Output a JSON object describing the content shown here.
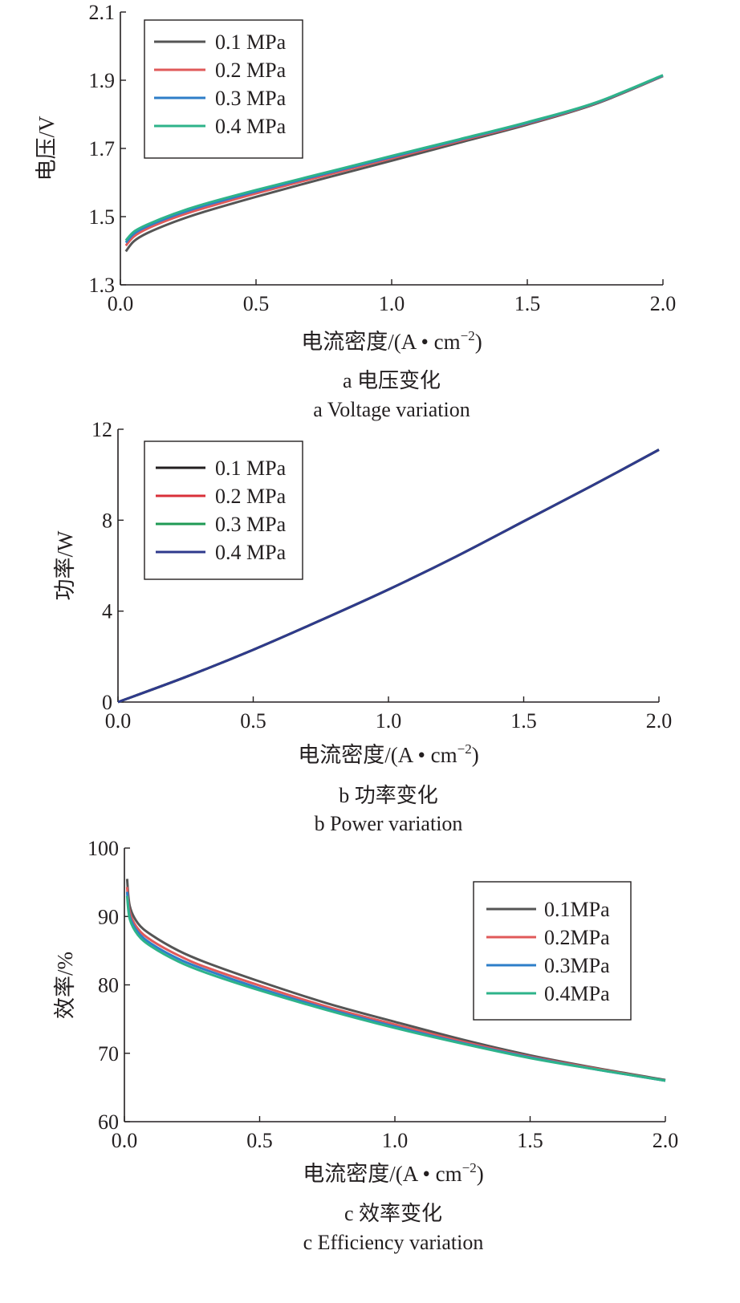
{
  "figures": [
    {
      "caption_cn": "a  电压变化",
      "caption_en": "a  Voltage variation"
    },
    {
      "caption_cn": "b  功率变化",
      "caption_en": "b  Power variation"
    },
    {
      "caption_cn": "c  效率变化",
      "caption_en": "c  Efficiency variation"
    }
  ],
  "chart_data": [
    {
      "type": "line",
      "xlabel": "电流密度/(A • cm⁻²)",
      "xlabel_main": "电流密度/(A • cm",
      "xlabel_sup": "−2",
      "xlabel_tail": ")",
      "ylabel": "电压/V",
      "xlim": [
        0,
        2.0
      ],
      "ylim": [
        1.3,
        2.1
      ],
      "xticks": [
        "0.0",
        "0.5",
        "1.0",
        "1.5",
        "2.0"
      ],
      "yticks": [
        "1.3",
        "1.5",
        "1.7",
        "1.9",
        "2.1"
      ],
      "legend_position": "top-left",
      "x": [
        0.02,
        0.05,
        0.1,
        0.2,
        0.3,
        0.5,
        0.75,
        1.0,
        1.25,
        1.5,
        1.75,
        2.0
      ],
      "series": [
        {
          "name": "0.1 MPa",
          "color": "#555555",
          "values": [
            1.398,
            1.428,
            1.452,
            1.485,
            1.512,
            1.558,
            1.612,
            1.664,
            1.717,
            1.77,
            1.83,
            1.912
          ]
        },
        {
          "name": "0.2 MPa",
          "color": "#e05a5a",
          "values": [
            1.415,
            1.442,
            1.465,
            1.497,
            1.523,
            1.568,
            1.62,
            1.671,
            1.722,
            1.773,
            1.832,
            1.913
          ]
        },
        {
          "name": "0.3 MPa",
          "color": "#2e7ec8",
          "values": [
            1.424,
            1.45,
            1.472,
            1.504,
            1.53,
            1.574,
            1.625,
            1.675,
            1.725,
            1.775,
            1.833,
            1.914
          ]
        },
        {
          "name": "0.4 MPa",
          "color": "#2eb38a",
          "values": [
            1.43,
            1.456,
            1.477,
            1.509,
            1.535,
            1.578,
            1.628,
            1.678,
            1.727,
            1.777,
            1.834,
            1.915
          ]
        }
      ]
    },
    {
      "type": "line",
      "xlabel": "电流密度/(A • cm⁻²)",
      "xlabel_main": "电流密度/(A • cm",
      "xlabel_sup": "−2",
      "xlabel_tail": ")",
      "ylabel": "功率/W",
      "xlim": [
        0,
        2.0
      ],
      "ylim": [
        0,
        12
      ],
      "xticks": [
        "0.0",
        "0.5",
        "1.0",
        "1.5",
        "2.0"
      ],
      "yticks": [
        "0",
        "4",
        "8",
        "12"
      ],
      "legend_position": "top-left",
      "x": [
        0.0,
        0.25,
        0.5,
        0.75,
        1.0,
        1.25,
        1.5,
        1.75,
        2.0
      ],
      "series": [
        {
          "name": "0.1 MPa",
          "color": "#231f20",
          "values": [
            0.0,
            1.1,
            2.3,
            3.6,
            4.95,
            6.4,
            7.95,
            9.5,
            11.1
          ]
        },
        {
          "name": "0.2 MPa",
          "color": "#d9303a",
          "values": [
            0.0,
            1.1,
            2.3,
            3.6,
            4.95,
            6.4,
            7.95,
            9.5,
            11.1
          ]
        },
        {
          "name": "0.3 MPa",
          "color": "#1f9a55",
          "values": [
            0.0,
            1.1,
            2.3,
            3.6,
            4.95,
            6.4,
            7.95,
            9.5,
            11.1
          ]
        },
        {
          "name": "0.4 MPa",
          "color": "#2f3a8c",
          "values": [
            0.0,
            1.1,
            2.3,
            3.6,
            4.95,
            6.4,
            7.95,
            9.5,
            11.1
          ]
        }
      ]
    },
    {
      "type": "line",
      "xlabel": "电流密度/(A • cm⁻²)",
      "xlabel_main": "电流密度/(A • cm",
      "xlabel_sup": "−2",
      "xlabel_tail": ")",
      "ylabel": "效率/%",
      "xlim": [
        0,
        2.0
      ],
      "ylim": [
        60,
        100
      ],
      "xticks": [
        "0.0",
        "0.5",
        "1.0",
        "1.5",
        "2.0"
      ],
      "yticks": [
        "60",
        "70",
        "80",
        "90",
        "100"
      ],
      "legend_position": "top-right",
      "x": [
        0.01,
        0.02,
        0.05,
        0.1,
        0.2,
        0.3,
        0.5,
        0.75,
        1.0,
        1.25,
        1.5,
        1.75,
        2.0
      ],
      "series": [
        {
          "name": "0.1MPa",
          "color": "#555555",
          "values": [
            95.5,
            91.5,
            89.0,
            87.3,
            85.0,
            83.3,
            80.5,
            77.3,
            74.6,
            72.0,
            69.7,
            67.8,
            66.1
          ]
        },
        {
          "name": "0.2MPa",
          "color": "#e05a5a",
          "values": [
            94.3,
            90.6,
            88.2,
            86.5,
            84.3,
            82.6,
            79.9,
            76.8,
            74.2,
            71.7,
            69.5,
            67.7,
            66.0
          ]
        },
        {
          "name": "0.3MPa",
          "color": "#2e7ec8",
          "values": [
            93.6,
            90.0,
            87.7,
            86.0,
            83.8,
            82.2,
            79.5,
            76.5,
            73.9,
            71.5,
            69.4,
            67.6,
            66.0
          ]
        },
        {
          "name": "0.4MPa",
          "color": "#2eb38a",
          "values": [
            93.0,
            89.6,
            87.3,
            85.6,
            83.4,
            81.8,
            79.2,
            76.3,
            73.7,
            71.4,
            69.3,
            67.6,
            66.0
          ]
        }
      ]
    }
  ]
}
